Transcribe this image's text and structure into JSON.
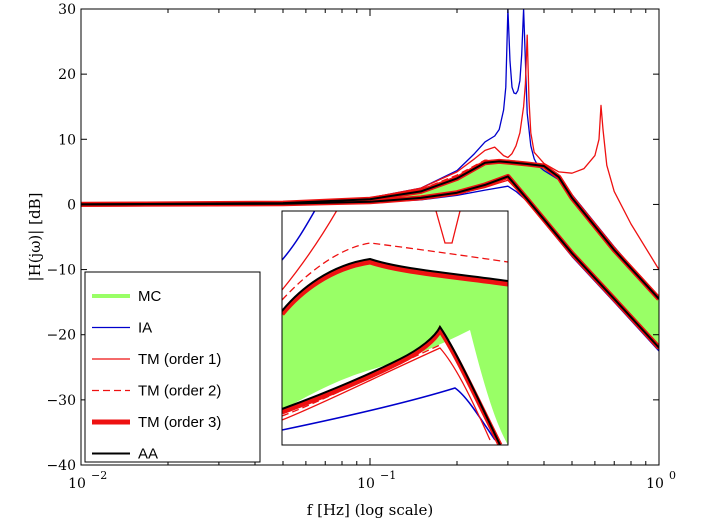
{
  "chart_data": {
    "type": "line",
    "title": "",
    "xlabel": "f [Hz] (log scale)",
    "ylabel": "|H(jω)| [dB]",
    "x_scale": "log",
    "xlim": [
      0.01,
      1
    ],
    "ylim": [
      -40,
      30
    ],
    "grid": false,
    "x_ticks": [
      {
        "value": 0.01,
        "base": "10",
        "exp": "−2"
      },
      {
        "value": 0.1,
        "base": "10",
        "exp": "−1"
      },
      {
        "value": 1,
        "base": "10",
        "exp": "0"
      }
    ],
    "y_ticks": [
      {
        "value": 30,
        "label": "30"
      },
      {
        "value": 20,
        "label": "20"
      },
      {
        "value": 10,
        "label": "10"
      },
      {
        "value": 0,
        "label": "0"
      },
      {
        "value": -10,
        "label": "−10"
      },
      {
        "value": -20,
        "label": "−20"
      },
      {
        "value": -30,
        "label": "−30"
      },
      {
        "value": -40,
        "label": "−40"
      }
    ],
    "legend_position": "bottom-left",
    "colors": {
      "MC": "#99ff66",
      "IA": "#0000cc",
      "TM": "#ee1111",
      "AA": "#000000"
    },
    "series": [
      {
        "name": "MC",
        "style": "band",
        "upper": {
          "x": [
            0.01,
            0.05,
            0.1,
            0.15,
            0.2,
            0.23,
            0.25,
            0.28,
            0.3,
            0.35,
            0.4,
            0.45,
            0.5,
            0.7,
            1.0
          ],
          "y": [
            0,
            0.2,
            0.8,
            2.0,
            4.0,
            5.5,
            6.4,
            6.6,
            6.5,
            6.2,
            5.9,
            4.2,
            1.0,
            -7.0,
            -14.5
          ]
        },
        "lower": {
          "x": [
            0.01,
            0.05,
            0.1,
            0.15,
            0.2,
            0.25,
            0.28,
            0.3,
            0.35,
            0.5,
            0.7,
            1.0
          ],
          "y": [
            0,
            0.1,
            0.4,
            1.0,
            1.8,
            3.0,
            3.8,
            4.3,
            0.8,
            -7.5,
            -14.5,
            -22.0
          ]
        }
      },
      {
        "name": "IA",
        "style": "solid",
        "x": [
          0.01,
          0.05,
          0.1,
          0.15,
          0.2,
          0.23,
          0.25,
          0.27,
          0.28,
          0.29,
          0.295,
          0.3,
          0.305,
          0.31,
          0.315,
          0.32,
          0.325,
          0.33,
          0.335,
          0.34,
          0.345,
          0.35,
          0.36,
          0.37,
          0.38,
          0.4,
          0.45,
          0.5,
          0.7,
          1.0
        ],
        "y": [
          0,
          0.1,
          1.0,
          2.5,
          5.2,
          7.8,
          9.6,
          10.5,
          11.5,
          14.5,
          18.0,
          30.0,
          22.0,
          18.0,
          17.1,
          17.0,
          17.5,
          19.0,
          23.0,
          30.0,
          22.0,
          14.0,
          9.0,
          7.0,
          6.0,
          5.2,
          3.8,
          1.5,
          -6.5,
          -14.5
        ]
      },
      {
        "name": "IA",
        "style": "solid",
        "x": [
          0.01,
          0.05,
          0.1,
          0.15,
          0.2,
          0.25,
          0.3,
          0.32,
          0.35,
          0.5,
          0.7,
          1.0
        ],
        "y": [
          0,
          0.1,
          0.3,
          0.7,
          1.4,
          2.2,
          2.8,
          2.0,
          0.5,
          -8.0,
          -15.0,
          -22.5
        ]
      },
      {
        "name": "TM (order 1)",
        "style": "solid",
        "x": [
          0.01,
          0.05,
          0.1,
          0.15,
          0.2,
          0.23,
          0.25,
          0.27,
          0.29,
          0.3,
          0.31,
          0.32,
          0.33,
          0.34,
          0.345,
          0.35,
          0.355,
          0.36,
          0.37,
          0.4,
          0.45,
          0.5,
          0.55,
          0.6,
          0.62,
          0.63,
          0.64,
          0.66,
          0.7,
          0.8,
          1.0
        ],
        "y": [
          0,
          0.1,
          1.0,
          2.5,
          5.0,
          7.0,
          8.3,
          8.8,
          7.5,
          7.2,
          7.8,
          9.0,
          11.0,
          15.0,
          18.5,
          26.0,
          16.0,
          11.0,
          8.0,
          6.3,
          5.0,
          4.8,
          5.5,
          7.5,
          10.0,
          15.2,
          11.5,
          6.0,
          2.0,
          -3.0,
          -10.0
        ]
      },
      {
        "name": "TM (order 1)",
        "style": "solid",
        "x": [
          0.01,
          0.05,
          0.1,
          0.15,
          0.2,
          0.25,
          0.28,
          0.3,
          0.35,
          0.5,
          0.7,
          1.0
        ],
        "y": [
          0,
          0.1,
          0.4,
          0.9,
          1.6,
          2.6,
          3.3,
          3.7,
          0.6,
          -7.7,
          -14.7,
          -22.2
        ]
      },
      {
        "name": "TM (order 2)",
        "style": "dashed",
        "x": [
          0.01,
          0.05,
          0.1,
          0.15,
          0.2,
          0.25,
          0.3,
          0.35,
          0.4,
          0.45,
          0.5,
          0.7,
          1.0
        ],
        "y": [
          0,
          0.2,
          0.9,
          2.3,
          4.5,
          6.8,
          6.8,
          6.4,
          6.0,
          4.3,
          1.1,
          -6.9,
          -14.4
        ]
      },
      {
        "name": "TM (order 3)",
        "style": "thick",
        "x": [
          0.01,
          0.05,
          0.1,
          0.15,
          0.2,
          0.23,
          0.25,
          0.28,
          0.3,
          0.35,
          0.4,
          0.45,
          0.5,
          0.7,
          1.0
        ],
        "y": [
          0,
          0.2,
          0.8,
          2.0,
          4.0,
          5.5,
          6.4,
          6.6,
          6.5,
          6.2,
          5.9,
          4.2,
          1.0,
          -7.0,
          -14.5
        ]
      },
      {
        "name": "TM (order 3)",
        "style": "thick",
        "x": [
          0.01,
          0.05,
          0.1,
          0.15,
          0.2,
          0.25,
          0.28,
          0.3,
          0.35,
          0.5,
          0.7,
          1.0
        ],
        "y": [
          0,
          0.1,
          0.4,
          1.0,
          1.8,
          3.0,
          3.8,
          4.3,
          0.8,
          -7.5,
          -14.5,
          -22.0
        ]
      },
      {
        "name": "AA",
        "style": "solid-bold",
        "x": [
          0.01,
          0.05,
          0.1,
          0.15,
          0.2,
          0.23,
          0.25,
          0.28,
          0.3,
          0.35,
          0.4,
          0.45,
          0.5,
          0.7,
          1.0
        ],
        "y": [
          0,
          0.2,
          0.8,
          2.0,
          4.0,
          5.5,
          6.4,
          6.6,
          6.5,
          6.2,
          5.9,
          4.2,
          1.0,
          -7.0,
          -14.5
        ]
      },
      {
        "name": "AA",
        "style": "solid-bold",
        "x": [
          0.01,
          0.05,
          0.1,
          0.15,
          0.2,
          0.25,
          0.28,
          0.3,
          0.35,
          0.5,
          0.7,
          1.0
        ],
        "y": [
          0,
          0.1,
          0.4,
          1.0,
          1.8,
          3.0,
          3.8,
          4.3,
          0.8,
          -7.5,
          -14.5,
          -22.0
        ]
      }
    ],
    "legend": [
      {
        "label": "MC",
        "color": "#99ff66",
        "style": "band"
      },
      {
        "label": "IA",
        "color": "#0000cc",
        "style": "solid"
      },
      {
        "label": "TM (order 1)",
        "color": "#ee1111",
        "style": "solid"
      },
      {
        "label": "TM (order 2)",
        "color": "#ee1111",
        "style": "dashed"
      },
      {
        "label": "TM (order 3)",
        "color": "#ee1111",
        "style": "thick"
      },
      {
        "label": "AA",
        "color": "#000000",
        "style": "solid-bold"
      }
    ],
    "inset": {
      "note": "zoomed view of the band region",
      "band_upper": {
        "x": [
          0,
          0.3,
          0.6,
          1
        ],
        "y": [
          0.18,
          0.0,
          0.08,
          0.12
        ]
      },
      "band_lower": {
        "x": [
          0,
          0.45,
          0.7,
          1
        ],
        "y": [
          0.79,
          0.6,
          0.63,
          1.12
        ]
      }
    }
  }
}
